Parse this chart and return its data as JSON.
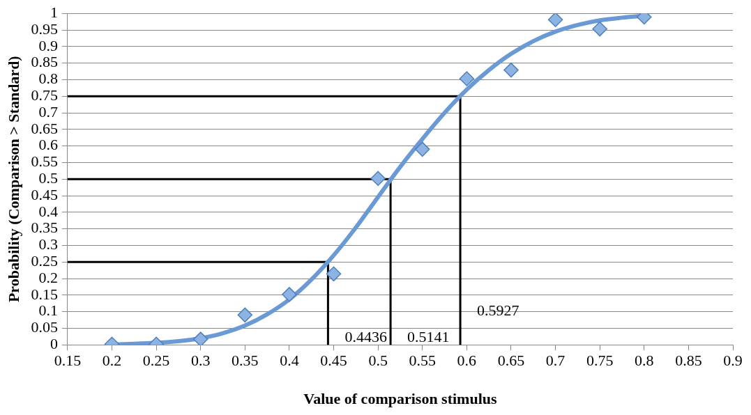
{
  "chart_data": {
    "type": "scatter",
    "xlabel": "Value of comparison stimulus",
    "ylabel": "Probability (Comparison > Standard)",
    "xlim": [
      0.15,
      0.9
    ],
    "ylim": [
      0,
      1
    ],
    "xticks": [
      0.15,
      0.2,
      0.25,
      0.3,
      0.35,
      0.4,
      0.45,
      0.5,
      0.55,
      0.6,
      0.65,
      0.7,
      0.75,
      0.8,
      0.85,
      0.9
    ],
    "yticks": [
      0,
      0.05,
      0.1,
      0.15,
      0.2,
      0.25,
      0.3,
      0.35,
      0.4,
      0.45,
      0.5,
      0.55,
      0.6,
      0.65,
      0.7,
      0.75,
      0.8,
      0.85,
      0.9,
      0.95,
      1
    ],
    "grid": "y",
    "legend": false,
    "series": [
      {
        "type": "line",
        "marker": "none",
        "color": "#000000",
        "x": [
          0.15,
          0.4436,
          0.4436
        ],
        "values": [
          0.25,
          0.25,
          0
        ]
      },
      {
        "type": "line",
        "marker": "none",
        "color": "#000000",
        "x": [
          0.15,
          0.5141,
          0.5141
        ],
        "values": [
          0.5,
          0.5,
          0
        ]
      },
      {
        "type": "line",
        "marker": "none",
        "color": "#000000",
        "x": [
          0.15,
          0.5927,
          0.5927
        ],
        "values": [
          0.75,
          0.75,
          0
        ]
      },
      {
        "type": "line",
        "marker": "none",
        "color": "#6a9ad6",
        "x": [
          0.2,
          0.225,
          0.25,
          0.275,
          0.3,
          0.325,
          0.35,
          0.375,
          0.4,
          0.425,
          0.45,
          0.475,
          0.5,
          0.525,
          0.55,
          0.575,
          0.6,
          0.625,
          0.65,
          0.675,
          0.7,
          0.725,
          0.75,
          0.775,
          0.8
        ],
        "values": [
          0.001,
          0.003,
          0.006,
          0.011,
          0.02,
          0.035,
          0.058,
          0.092,
          0.137,
          0.197,
          0.27,
          0.354,
          0.446,
          0.537,
          0.621,
          0.7,
          0.77,
          0.829,
          0.878,
          0.916,
          0.945,
          0.965,
          0.979,
          0.987,
          0.993
        ]
      },
      {
        "type": "scatter",
        "marker": "diamond",
        "color": "#4f81bd",
        "x": [
          0.2,
          0.25,
          0.3,
          0.35,
          0.4,
          0.45,
          0.5,
          0.55,
          0.6,
          0.65,
          0.7,
          0.75,
          0.8
        ],
        "values": [
          0.002,
          0.002,
          0.017,
          0.09,
          0.152,
          0.214,
          0.502,
          0.59,
          0.803,
          0.829,
          0.981,
          0.953,
          0.989
        ]
      }
    ],
    "annotations": [
      {
        "text": "0.4436",
        "x": 0.4436,
        "y": 0.02
      },
      {
        "text": "0.5141",
        "x": 0.5141,
        "y": 0.02
      },
      {
        "text": "0.5927",
        "x": 0.5927,
        "y": 0.1
      }
    ]
  }
}
